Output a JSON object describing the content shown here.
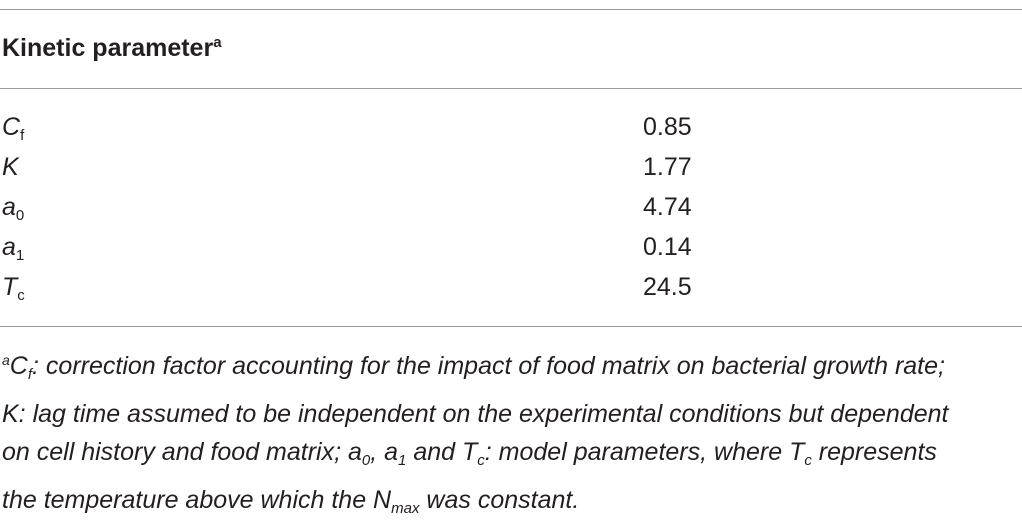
{
  "header": {
    "label": "Kinetic parameter",
    "note_marker": "a"
  },
  "rows": [
    {
      "symbol": "C",
      "subscript": "f",
      "value": 0.85
    },
    {
      "symbol": "K",
      "subscript": null,
      "value": 1.77
    },
    {
      "symbol": "a",
      "subscript": "0",
      "value": 4.74
    },
    {
      "symbol": "a",
      "subscript": "1",
      "value": 0.14
    },
    {
      "symbol": "T",
      "subscript": "c",
      "value": 24.5
    }
  ],
  "footnote": {
    "runs": [
      "a",
      "C",
      "f",
      ": correction factor accounting for the impact of food matrix on bacterial growth rate;",
      "K: lag time assumed to be independent on the experimental conditions but dependent",
      "on cell history and food matrix; a",
      "0",
      ", a",
      "1",
      " and T",
      "c",
      ": model parameters, where T",
      "c",
      " represents",
      "the temperature above which the N",
      "max",
      " was constant."
    ]
  }
}
